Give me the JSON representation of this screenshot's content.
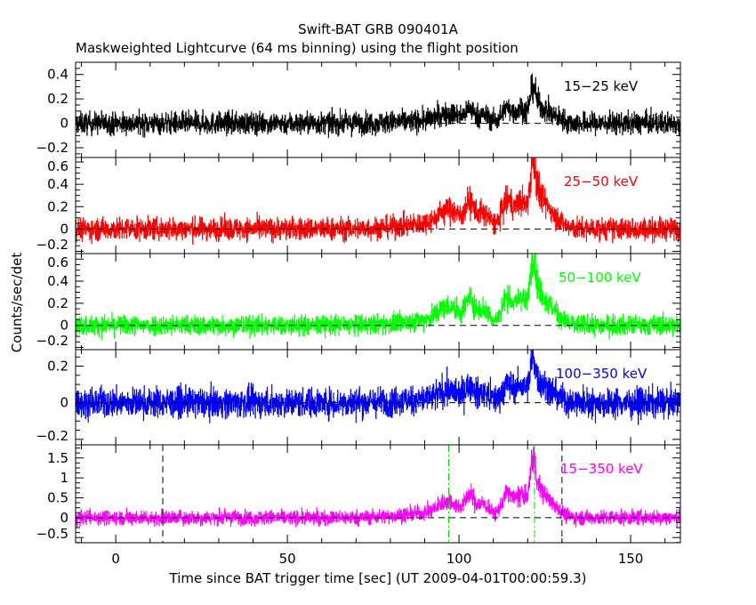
{
  "chart_data": {
    "type": "line",
    "title": "Swift-BAT GRB 090401A",
    "subtitle": "Maskweighted Lightcurve (64 ms binning) using the flight position",
    "xlabel": "Time since BAT trigger time [sec] (UT 2009-04-01T00:00:59.3)",
    "ylabel": "Counts/sec/det",
    "xlim": [
      -11.7,
      164.5
    ],
    "x_ticks": [
      0,
      50,
      100,
      150
    ],
    "x_tick_labels": [
      "0",
      "50",
      "100",
      "150"
    ],
    "bin_size_sec": 0.064,
    "pulse_profile": [
      [
        93,
        0.12,
        9
      ],
      [
        97,
        0.3,
        3
      ],
      [
        103,
        0.45,
        1.2
      ],
      [
        107,
        0.3,
        2
      ],
      [
        114,
        0.6,
        1.5
      ],
      [
        118,
        0.55,
        1.5
      ],
      [
        121.5,
        1.0,
        0.8
      ],
      [
        123,
        0.6,
        2
      ],
      [
        127,
        0.3,
        2.5
      ]
    ],
    "panels": [
      {
        "label": "15−25 keV",
        "color": "#000000",
        "ylim": [
          -0.28,
          0.5
        ],
        "y_ticks": [
          -0.2,
          0,
          0.2,
          0.4
        ],
        "y_tick_labels": [
          "−0.2",
          "0",
          "0.2",
          "0.4"
        ],
        "scale": 0.2,
        "noise": 0.045
      },
      {
        "label": "25−50 keV",
        "color": "#ff0000",
        "ylim": [
          -0.22,
          0.64
        ],
        "y_ticks": [
          -0.2,
          0,
          0.2,
          0.4,
          0.6
        ],
        "y_tick_labels": [
          "−0.2",
          "0",
          "0.2",
          "0.4",
          "0.6"
        ],
        "scale": 0.42,
        "noise": 0.05
      },
      {
        "label": "50−100 keV",
        "color": "#00ff00",
        "ylim": [
          -0.22,
          0.65
        ],
        "y_ticks": [
          -0.2,
          0,
          0.2,
          0.4,
          0.6
        ],
        "y_tick_labels": [
          "−0.2",
          "0",
          "0.2",
          "0.4",
          "0.6"
        ],
        "scale": 0.42,
        "noise": 0.045
      },
      {
        "label": "100−350 keV",
        "color": "#0000ff",
        "ylim": [
          -0.23,
          0.29
        ],
        "y_ticks": [
          -0.2,
          0,
          0.2
        ],
        "y_tick_labels": [
          "−0.2",
          "0",
          "0.2"
        ],
        "scale": 0.16,
        "noise": 0.04
      },
      {
        "label": "15−350 keV",
        "color": "#ff00ff",
        "ylim": [
          -0.63,
          1.83
        ],
        "y_ticks": [
          -0.5,
          0,
          0.5,
          1,
          1.5
        ],
        "y_tick_labels": [
          "−0.5",
          "0",
          "0.5",
          "1",
          "1.5"
        ],
        "scale": 1.0,
        "noise": 0.09
      }
    ],
    "markers": [
      {
        "t": 13.7,
        "style": "black-dashed"
      },
      {
        "t": 130.0,
        "style": "black-dashed"
      },
      {
        "t": 97.0,
        "style": "green-dashdot"
      },
      {
        "t": 122.0,
        "style": "green-dashdot"
      }
    ]
  }
}
